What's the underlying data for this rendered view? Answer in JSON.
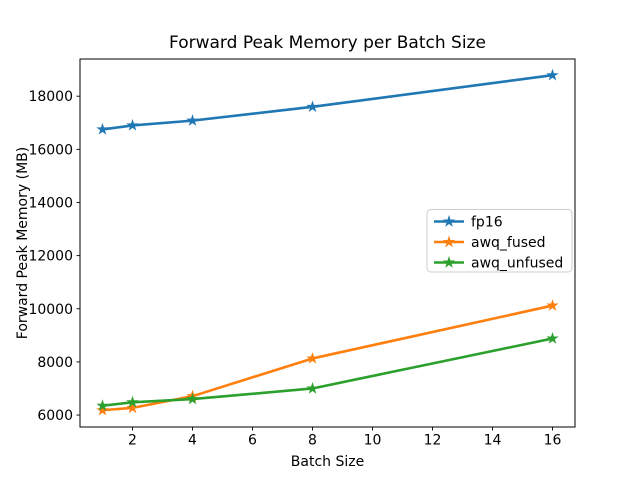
{
  "figure": {
    "background": "#ffffff"
  },
  "chart_data": {
    "type": "line",
    "title": "Forward Peak Memory per Batch Size",
    "xlabel": "Batch Size",
    "ylabel": "Forward Peak Memory (MB)",
    "x": [
      1,
      2,
      4,
      8,
      16
    ],
    "xticks": [
      2,
      4,
      6,
      8,
      10,
      12,
      14,
      16
    ],
    "yticks": [
      6000,
      8000,
      10000,
      12000,
      14000,
      16000,
      18000
    ],
    "xlim": [
      0.25,
      16.75
    ],
    "ylim": [
      5550,
      19400
    ],
    "grid": false,
    "marker": "star",
    "legend": {
      "position": "center right"
    },
    "series": [
      {
        "name": "fp16",
        "color": "#1f77b4",
        "values": [
          16750,
          16900,
          17080,
          17600,
          18790
        ]
      },
      {
        "name": "awq_fused",
        "color": "#ff7f0e",
        "values": [
          6180,
          6270,
          6710,
          8130,
          10120
        ]
      },
      {
        "name": "awq_unfused",
        "color": "#2ca02c",
        "values": [
          6350,
          6480,
          6600,
          7000,
          8880
        ]
      }
    ],
    "axis_color": "#000000",
    "legend_border_color": "#cccccc"
  }
}
